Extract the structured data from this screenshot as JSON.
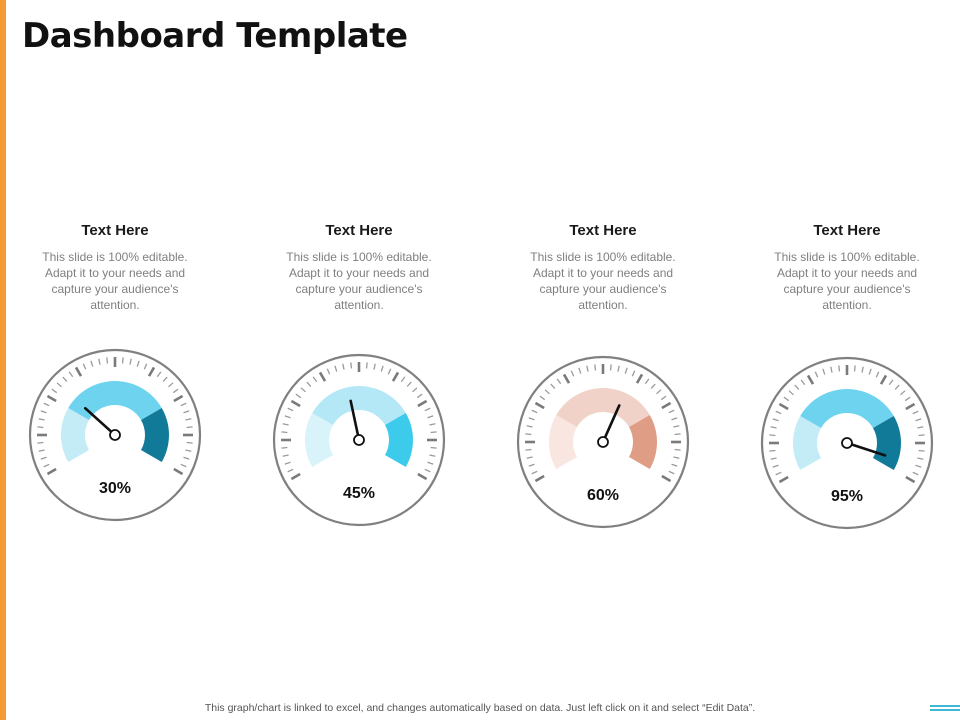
{
  "slide": {
    "title": "Dashboard Template",
    "footer": "This graph/chart is linked to excel, and changes automatically based on data. Just left click on it and select “Edit Data”.",
    "accent_color": "#f59a35"
  },
  "cards": [
    {
      "heading": "Text Here",
      "body": "This slide is 100% editable. Adapt it to your needs and capture your audience's attention."
    },
    {
      "heading": "Text Here",
      "body": "This slide is 100% editable. Adapt it to your needs and capture your audience's attention."
    },
    {
      "heading": "Text Here",
      "body": "This slide is 100% editable. Adapt it to your needs and capture your audience's attention."
    },
    {
      "heading": "Text Here",
      "body": "This slide is 100% editable. Adapt it to your needs and capture your audience's attention."
    }
  ],
  "gauges": [
    {
      "label": "30%",
      "value": 30,
      "colors": [
        "#c4ecf7",
        "#6ed3ef",
        "#127a99"
      ]
    },
    {
      "label": "45%",
      "value": 45,
      "colors": [
        "#d8f3fa",
        "#b5e8f6",
        "#3ccbeb"
      ]
    },
    {
      "label": "60%",
      "value": 60,
      "colors": [
        "#f9e6e1",
        "#f1d2c9",
        "#df9d86"
      ]
    },
    {
      "label": "95%",
      "value": 95,
      "colors": [
        "#c4ecf7",
        "#6ed3ef",
        "#127a99"
      ]
    }
  ]
}
